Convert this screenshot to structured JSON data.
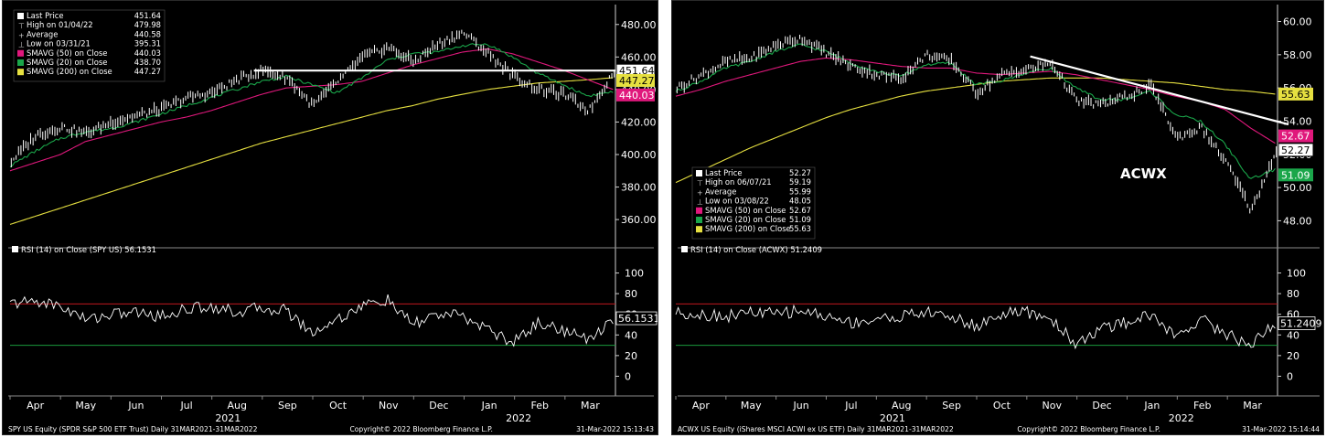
{
  "colors": {
    "background": "#000000",
    "price": "#ffffff",
    "sma50": "#e0187c",
    "sma20": "#1aa64a",
    "sma200": "#e6e040",
    "rsi_overbought": "#c0181e",
    "rsi_oversold": "#1a9a3c",
    "axis_text": "#ffffff"
  },
  "charts": [
    {
      "id": "spy",
      "legend": [
        {
          "label": "Last Price",
          "value": "451.64",
          "marker": "white-square"
        },
        {
          "label": "High on 01/04/22",
          "value": "479.98",
          "marker": "high-glyph"
        },
        {
          "label": "Average",
          "value": "440.58",
          "marker": "avg-glyph"
        },
        {
          "label": "Low on 03/31/21",
          "value": "395.31",
          "marker": "low-glyph"
        },
        {
          "label": "SMAVG (50)  on Close",
          "value": "440.03",
          "marker": "magenta-square"
        },
        {
          "label": "SMAVG (20)  on Close",
          "value": "438.70",
          "marker": "green-square"
        },
        {
          "label": "SMAVG (200)  on Close",
          "value": "447.27",
          "marker": "yellow-square"
        }
      ],
      "price_ticks": [
        "480.00",
        "460.00",
        "440.00",
        "420.00",
        "400.00",
        "380.00",
        "360.00"
      ],
      "price_badges": [
        {
          "text": "451.64",
          "value": 451.64,
          "kind": "last"
        },
        {
          "text": "447.27",
          "value": 447.27,
          "kind": "sma200"
        },
        {
          "text": "440.03",
          "value": 440.03,
          "kind": "sma50"
        }
      ],
      "rsi_label": "RSI (14)  on Close (SPY US) 56.1531",
      "rsi_badge": "56.1531",
      "rsi_ticks": [
        "100",
        "80",
        "60",
        "40",
        "20",
        "0"
      ],
      "months": [
        "Apr",
        "May",
        "Jun",
        "Jul",
        "Aug",
        "Sep",
        "Oct",
        "Nov",
        "Dec",
        "Jan",
        "Feb",
        "Mar"
      ],
      "years": [
        "2021",
        "2022"
      ],
      "footer_left": "SPY US Equity (SPDR S&P 500 ETF Trust)  Daily 31MAR2021-31MAR2022",
      "footer_mid": "Copyright© 2022 Bloomberg Finance L.P.",
      "footer_right": "31-Mar-2022 15:13:43",
      "annotation": ""
    },
    {
      "id": "acwx",
      "legend": [
        {
          "label": "Last Price",
          "value": "52.27",
          "marker": "white-square"
        },
        {
          "label": "High on 06/07/21",
          "value": "59.19",
          "marker": "high-glyph"
        },
        {
          "label": "Average",
          "value": "55.99",
          "marker": "avg-glyph"
        },
        {
          "label": "Low on 03/08/22",
          "value": "48.05",
          "marker": "low-glyph"
        },
        {
          "label": "SMAVG (50)  on Close",
          "value": "52.67",
          "marker": "magenta-square"
        },
        {
          "label": "SMAVG (20)  on Close",
          "value": "51.09",
          "marker": "green-square"
        },
        {
          "label": "SMAVG (200)  on Close",
          "value": "55.63",
          "marker": "yellow-square"
        }
      ],
      "price_ticks": [
        "60.00",
        "58.00",
        "56.00",
        "54.00",
        "52.00",
        "50.00",
        "48.00"
      ],
      "price_badges": [
        {
          "text": "55.63",
          "value": 55.63,
          "kind": "sma200"
        },
        {
          "text": "52.67",
          "value": 52.67,
          "kind": "sma50"
        },
        {
          "text": "52.27",
          "value": 52.27,
          "kind": "last"
        },
        {
          "text": "51.09",
          "value": 51.09,
          "kind": "sma20"
        }
      ],
      "rsi_label": "RSI (14)  on Close (ACWX) 51.2409",
      "rsi_badge": "51.2409",
      "rsi_ticks": [
        "100",
        "80",
        "60",
        "40",
        "20",
        "0"
      ],
      "months": [
        "Apr",
        "May",
        "Jun",
        "Jul",
        "Aug",
        "Sep",
        "Oct",
        "Nov",
        "Dec",
        "Jan",
        "Feb",
        "Mar"
      ],
      "years": [
        "2021",
        "2022"
      ],
      "footer_left": "ACWX US Equity (iShares MSCI ACWI ex US ETF)  Daily 31MAR2021-31MAR2022",
      "footer_mid": "Copyright© 2022 Bloomberg Finance L.P.",
      "footer_right": "31-Mar-2022 15:14:44",
      "annotation": "ACWX"
    }
  ],
  "chart_data": [
    {
      "type": "line",
      "title": "SPY US Equity (SPDR S&P 500 ETF Trust)",
      "ylim": [
        346,
        490
      ],
      "x": [
        "2021-03-31",
        "2021-04-15",
        "2021-04-30",
        "2021-05-14",
        "2021-05-28",
        "2021-06-15",
        "2021-06-30",
        "2021-07-15",
        "2021-07-30",
        "2021-08-16",
        "2021-08-31",
        "2021-09-15",
        "2021-09-30",
        "2021-10-15",
        "2021-10-29",
        "2021-11-15",
        "2021-11-30",
        "2021-12-15",
        "2021-12-31",
        "2022-01-14",
        "2022-01-31",
        "2022-02-15",
        "2022-02-28",
        "2022-03-15",
        "2022-03-31"
      ],
      "series": [
        {
          "name": "Last Price",
          "values": [
            396,
            412,
            417,
            413,
            420,
            424,
            428,
            435,
            438,
            446,
            452,
            447,
            430,
            445,
            460,
            466,
            457,
            468,
            475,
            462,
            448,
            440,
            437,
            427,
            451.64
          ]
        },
        {
          "name": "SMAVG (50)",
          "values": [
            390,
            395,
            400,
            408,
            412,
            416,
            420,
            423,
            427,
            432,
            437,
            441,
            442,
            443,
            445,
            450,
            455,
            459,
            463,
            465,
            462,
            457,
            452,
            446,
            440.03
          ]
        },
        {
          "name": "SMAVG (20)",
          "values": [
            393,
            402,
            410,
            414,
            416,
            420,
            425,
            430,
            435,
            440,
            445,
            448,
            443,
            438,
            447,
            458,
            462,
            463,
            467,
            468,
            460,
            450,
            443,
            436,
            438.7
          ]
        },
        {
          "name": "SMAVG (200)",
          "values": [
            357,
            362,
            367,
            372,
            377,
            382,
            387,
            392,
            397,
            402,
            407,
            411,
            415,
            419,
            423,
            427,
            430,
            434,
            437,
            440,
            442,
            444,
            445,
            446,
            447.27
          ]
        }
      ],
      "annotations": [
        {
          "type": "horizontal-line",
          "value": 451.64,
          "from": "2021-08-25",
          "to": "2022-03-31"
        }
      ],
      "rsi": {
        "ylim": [
          -12,
          112
        ],
        "overbought": 70,
        "oversold": 30,
        "values": [
          70,
          73,
          68,
          55,
          60,
          62,
          58,
          65,
          68,
          62,
          66,
          64,
          42,
          55,
          68,
          74,
          50,
          60,
          58,
          46,
          32,
          52,
          45,
          35,
          56.1531
        ]
      }
    },
    {
      "type": "line",
      "title": "ACWX US Equity (iShares MSCI ACWI ex US ETF)",
      "ylim": [
        46.7,
        60.8
      ],
      "x": [
        "2021-03-31",
        "2021-04-15",
        "2021-04-30",
        "2021-05-14",
        "2021-05-28",
        "2021-06-15",
        "2021-06-30",
        "2021-07-15",
        "2021-07-30",
        "2021-08-16",
        "2021-08-31",
        "2021-09-15",
        "2021-09-30",
        "2021-10-15",
        "2021-10-29",
        "2021-11-15",
        "2021-11-30",
        "2021-12-15",
        "2021-12-31",
        "2022-01-14",
        "2022-01-31",
        "2022-02-15",
        "2022-02-28",
        "2022-03-15",
        "2022-03-31"
      ],
      "series": [
        {
          "name": "Last Price",
          "values": [
            56.0,
            56.8,
            57.6,
            57.8,
            58.6,
            59.0,
            58.1,
            57.3,
            56.8,
            56.6,
            58.0,
            57.6,
            55.7,
            56.8,
            57.1,
            57.5,
            55.2,
            55.0,
            55.5,
            56.1,
            53.0,
            53.6,
            51.5,
            48.6,
            52.27
          ]
        },
        {
          "name": "SMAVG (50)",
          "values": [
            55.5,
            55.9,
            56.4,
            56.8,
            57.2,
            57.6,
            57.8,
            57.7,
            57.5,
            57.3,
            57.2,
            57.2,
            56.9,
            56.8,
            56.9,
            57.0,
            56.8,
            56.5,
            56.2,
            55.9,
            55.5,
            55.2,
            54.7,
            53.6,
            52.67
          ]
        },
        {
          "name": "SMAVG (20)",
          "values": [
            55.8,
            56.4,
            57.2,
            57.6,
            58.2,
            58.6,
            58.2,
            57.5,
            57.0,
            56.7,
            57.4,
            57.5,
            56.2,
            56.4,
            56.9,
            57.2,
            56.0,
            55.3,
            55.3,
            55.8,
            54.4,
            54.0,
            52.6,
            50.5,
            51.09
          ]
        },
        {
          "name": "SMAVG (200)",
          "values": [
            50.3,
            51.0,
            51.7,
            52.4,
            53.0,
            53.6,
            54.2,
            54.7,
            55.1,
            55.5,
            55.8,
            56.0,
            56.2,
            56.4,
            56.5,
            56.6,
            56.6,
            56.6,
            56.5,
            56.4,
            56.3,
            56.1,
            55.9,
            55.8,
            55.63
          ]
        }
      ],
      "annotations": [
        {
          "type": "trend-line",
          "from": [
            "2021-11-01",
            57.9
          ],
          "to": [
            "2022-03-31",
            53.8
          ]
        }
      ],
      "rsi": {
        "ylim": [
          -12,
          112
        ],
        "overbought": 70,
        "oversold": 30,
        "values": [
          62,
          60,
          58,
          62,
          60,
          64,
          58,
          52,
          55,
          58,
          62,
          58,
          48,
          60,
          62,
          56,
          32,
          45,
          52,
          60,
          38,
          56,
          42,
          30,
          51.2409
        ]
      }
    }
  ]
}
